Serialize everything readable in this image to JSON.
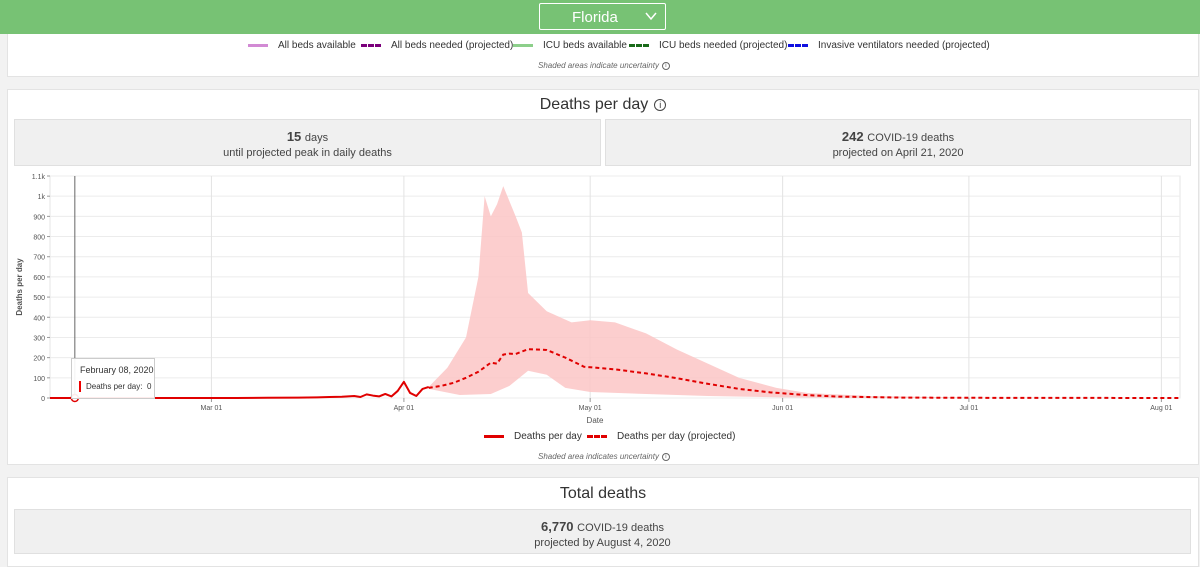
{
  "header": {
    "state": "Florida"
  },
  "resource_legend": {
    "items": [
      {
        "label": "All beds available",
        "color": "#d28ad4",
        "dashed": false
      },
      {
        "label": "All beds needed (projected)",
        "color": "#7b007b",
        "dashed": true
      },
      {
        "label": "ICU beds available",
        "color": "#8ccf8a",
        "dashed": false
      },
      {
        "label": "ICU beds needed (projected)",
        "color": "#1a6b1a",
        "dashed": true
      },
      {
        "label": "Invasive ventilators needed (projected)",
        "color": "#1010e0",
        "dashed": true
      }
    ],
    "note": "Shaded areas indicate uncertainty"
  },
  "deaths_per_day": {
    "title": "Deaths per day",
    "peak_stat": {
      "value": "15",
      "unit": "days",
      "sub": "until projected peak in daily deaths"
    },
    "deaths_stat": {
      "value": "242",
      "unit": "COVID-19 deaths",
      "sub": "projected on April 21, 2020"
    },
    "legend": {
      "actual": "Deaths per day",
      "projected": "Deaths per day (projected)"
    },
    "note": "Shaded area indicates uncertainty",
    "tooltip": {
      "date": "February 08, 2020",
      "label": "Deaths per day:",
      "value": "0"
    }
  },
  "total_deaths": {
    "title": "Total deaths",
    "stat": {
      "value": "6,770",
      "unit": "COVID-19 deaths",
      "sub": "projected by August 4, 2020"
    }
  },
  "chart_data": {
    "type": "line",
    "xlabel": "Date",
    "ylabel": "Deaths per day",
    "x_range": [
      "2020-02-04",
      "2020-08-04"
    ],
    "ylim": [
      0,
      1100
    ],
    "yticks": [
      0,
      100,
      200,
      300,
      400,
      500,
      600,
      700,
      800,
      900,
      1000,
      1100
    ],
    "ytick_labels": [
      "0",
      "100",
      "200",
      "300",
      "400",
      "500",
      "600",
      "700",
      "800",
      "900",
      "1k",
      "1.1k"
    ],
    "xticks": [
      {
        "date": "2020-03-01",
        "label": "Mar 01"
      },
      {
        "date": "2020-04-01",
        "label": "Apr 01"
      },
      {
        "date": "2020-05-01",
        "label": "May 01"
      },
      {
        "date": "2020-06-01",
        "label": "Jun 01"
      },
      {
        "date": "2020-07-01",
        "label": "Jul 01"
      },
      {
        "date": "2020-08-01",
        "label": "Aug 01"
      }
    ],
    "grid": true,
    "legend_position": "bottom",
    "series": [
      {
        "name": "Deaths per day",
        "style": "solid",
        "color": "#e00000",
        "points": [
          [
            "2020-02-04",
            0
          ],
          [
            "2020-02-08",
            0
          ],
          [
            "2020-02-20",
            0
          ],
          [
            "2020-03-05",
            0
          ],
          [
            "2020-03-10",
            1
          ],
          [
            "2020-03-15",
            2
          ],
          [
            "2020-03-18",
            3
          ],
          [
            "2020-03-20",
            5
          ],
          [
            "2020-03-22",
            6
          ],
          [
            "2020-03-24",
            10
          ],
          [
            "2020-03-25",
            5
          ],
          [
            "2020-03-26",
            18
          ],
          [
            "2020-03-27",
            12
          ],
          [
            "2020-03-28",
            8
          ],
          [
            "2020-03-29",
            20
          ],
          [
            "2020-03-30",
            8
          ],
          [
            "2020-03-31",
            35
          ],
          [
            "2020-04-01",
            80
          ],
          [
            "2020-04-02",
            25
          ],
          [
            "2020-04-03",
            10
          ],
          [
            "2020-04-04",
            45
          ],
          [
            "2020-04-05",
            55
          ]
        ]
      },
      {
        "name": "Deaths per day (projected)",
        "style": "dashed",
        "color": "#e00000",
        "points": [
          [
            "2020-04-05",
            50
          ],
          [
            "2020-04-07",
            60
          ],
          [
            "2020-04-09",
            75
          ],
          [
            "2020-04-11",
            100
          ],
          [
            "2020-04-13",
            130
          ],
          [
            "2020-04-15",
            175
          ],
          [
            "2020-04-16",
            170
          ],
          [
            "2020-04-17",
            215
          ],
          [
            "2020-04-18",
            220
          ],
          [
            "2020-04-19",
            218
          ],
          [
            "2020-04-21",
            242
          ],
          [
            "2020-04-24",
            238
          ],
          [
            "2020-04-27",
            200
          ],
          [
            "2020-04-30",
            155
          ],
          [
            "2020-05-05",
            142
          ],
          [
            "2020-05-10",
            122
          ],
          [
            "2020-05-15",
            98
          ],
          [
            "2020-05-20",
            70
          ],
          [
            "2020-05-25",
            45
          ],
          [
            "2020-05-30",
            28
          ],
          [
            "2020-06-05",
            14
          ],
          [
            "2020-06-10",
            7
          ],
          [
            "2020-06-20",
            2
          ],
          [
            "2020-07-01",
            1
          ],
          [
            "2020-08-04",
            0
          ]
        ],
        "uncertainty_upper": [
          [
            "2020-04-05",
            55
          ],
          [
            "2020-04-08",
            150
          ],
          [
            "2020-04-11",
            300
          ],
          [
            "2020-04-13",
            600
          ],
          [
            "2020-04-14",
            1000
          ],
          [
            "2020-04-15",
            900
          ],
          [
            "2020-04-16",
            960
          ],
          [
            "2020-04-17",
            1050
          ],
          [
            "2020-04-19",
            900
          ],
          [
            "2020-04-20",
            820
          ],
          [
            "2020-04-21",
            520
          ],
          [
            "2020-04-24",
            430
          ],
          [
            "2020-04-28",
            375
          ],
          [
            "2020-05-01",
            385
          ],
          [
            "2020-05-05",
            375
          ],
          [
            "2020-05-10",
            320
          ],
          [
            "2020-05-15",
            240
          ],
          [
            "2020-05-20",
            170
          ],
          [
            "2020-05-25",
            100
          ],
          [
            "2020-05-31",
            50
          ],
          [
            "2020-06-05",
            25
          ],
          [
            "2020-06-15",
            10
          ],
          [
            "2020-07-01",
            2
          ],
          [
            "2020-08-04",
            0
          ]
        ],
        "uncertainty_lower": [
          [
            "2020-04-05",
            45
          ],
          [
            "2020-04-10",
            15
          ],
          [
            "2020-04-15",
            20
          ],
          [
            "2020-04-18",
            60
          ],
          [
            "2020-04-21",
            135
          ],
          [
            "2020-04-24",
            115
          ],
          [
            "2020-04-27",
            50
          ],
          [
            "2020-05-01",
            30
          ],
          [
            "2020-05-10",
            20
          ],
          [
            "2020-05-20",
            10
          ],
          [
            "2020-06-01",
            3
          ],
          [
            "2020-06-15",
            0
          ],
          [
            "2020-08-04",
            0
          ]
        ]
      }
    ]
  }
}
